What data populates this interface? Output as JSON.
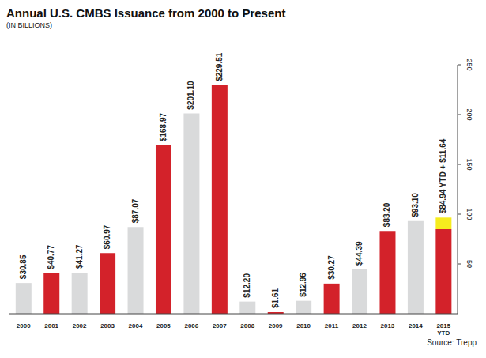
{
  "chart_data": {
    "type": "bar",
    "title": "Annual U.S. CMBS Issuance from 2000 to Present",
    "subtitle": "(IN BILLIONS)",
    "source": "Source: Trepp",
    "categories": [
      "2000",
      "2001",
      "2002",
      "2003",
      "2004",
      "2005",
      "2006",
      "2007",
      "2008",
      "2009",
      "2010",
      "2011",
      "2012",
      "2013",
      "2014",
      "2015 YTD"
    ],
    "series": [
      {
        "colors": [
          "#d9dadb",
          "#d3222a",
          "#d9dadb",
          "#d3222a",
          "#d9dadb",
          "#d3222a",
          "#d9dadb",
          "#d3222a",
          "#d9dadb",
          "#d3222a",
          "#d9dadb",
          "#d3222a",
          "#d9dadb",
          "#d3222a",
          "#d9dadb",
          "#d3222a"
        ],
        "values": [
          30.85,
          40.77,
          41.27,
          60.97,
          87.07,
          168.97,
          201.1,
          229.51,
          12.2,
          1.61,
          12.96,
          30.27,
          44.39,
          83.2,
          93.1,
          84.94
        ],
        "value_labels": [
          "$30.85",
          "$40.77",
          "$41.27",
          "$60.97",
          "$87.07",
          "$168.97",
          "$201.10",
          "$229.51",
          "$12.20",
          "$1.61",
          "$12.96",
          "$30.27",
          "$44.39",
          "$83.20",
          "$93.10",
          "$84.94 YTD + $11.64"
        ]
      },
      {
        "color": "#f6ec1e",
        "values": [
          null,
          null,
          null,
          null,
          null,
          null,
          null,
          null,
          null,
          null,
          null,
          null,
          null,
          null,
          null,
          11.64
        ]
      }
    ],
    "ylim": [
      0,
      250
    ],
    "yticks": [
      50,
      100,
      150,
      200,
      250
    ],
    "stacked": true,
    "data_labels": true,
    "grid": false
  }
}
